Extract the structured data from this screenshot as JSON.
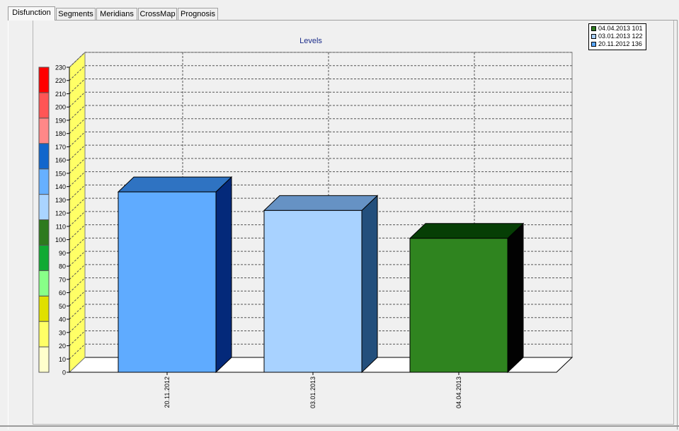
{
  "tabs": [
    {
      "label": "Disfunction",
      "active": true
    },
    {
      "label": "Segments",
      "active": false
    },
    {
      "label": "Meridians",
      "active": false
    },
    {
      "label": "CrossMap",
      "active": false
    },
    {
      "label": "Prognosis",
      "active": false
    }
  ],
  "chart_data": {
    "type": "bar",
    "title": "Levels",
    "xlabel": "",
    "ylabel": "",
    "categories": [
      "20.11.2012",
      "03.01.2013",
      "04.04.2013"
    ],
    "values": [
      136,
      122,
      101
    ],
    "ylim": [
      0,
      230
    ],
    "ytick_step": 10,
    "grid": true,
    "legend_position": "top-right",
    "legend": [
      {
        "label": "04.04.2013 101",
        "color": "#2e7d1e"
      },
      {
        "label": "03.01.2013 122",
        "color": "#a8d0ff"
      },
      {
        "label": "20.11.2012 136",
        "color": "#5aa8ff"
      }
    ],
    "bar_colors": [
      {
        "front": "#5fabff",
        "top": "#2f73c2",
        "side": "#04297a"
      },
      {
        "front": "#a8d2ff",
        "top": "#6692c4",
        "side": "#234f7c"
      },
      {
        "front": "#2f841f",
        "top": "#063e05",
        "side": "#020202"
      }
    ],
    "level_scale_colors": [
      "#ffffcc",
      "#ffff66",
      "#e0e000",
      "#88ff88",
      "#11aa33",
      "#2e7a1e",
      "#aad4ff",
      "#66b0ff",
      "#1166cc",
      "#ff8888",
      "#ff5555",
      "#ff0000"
    ]
  }
}
